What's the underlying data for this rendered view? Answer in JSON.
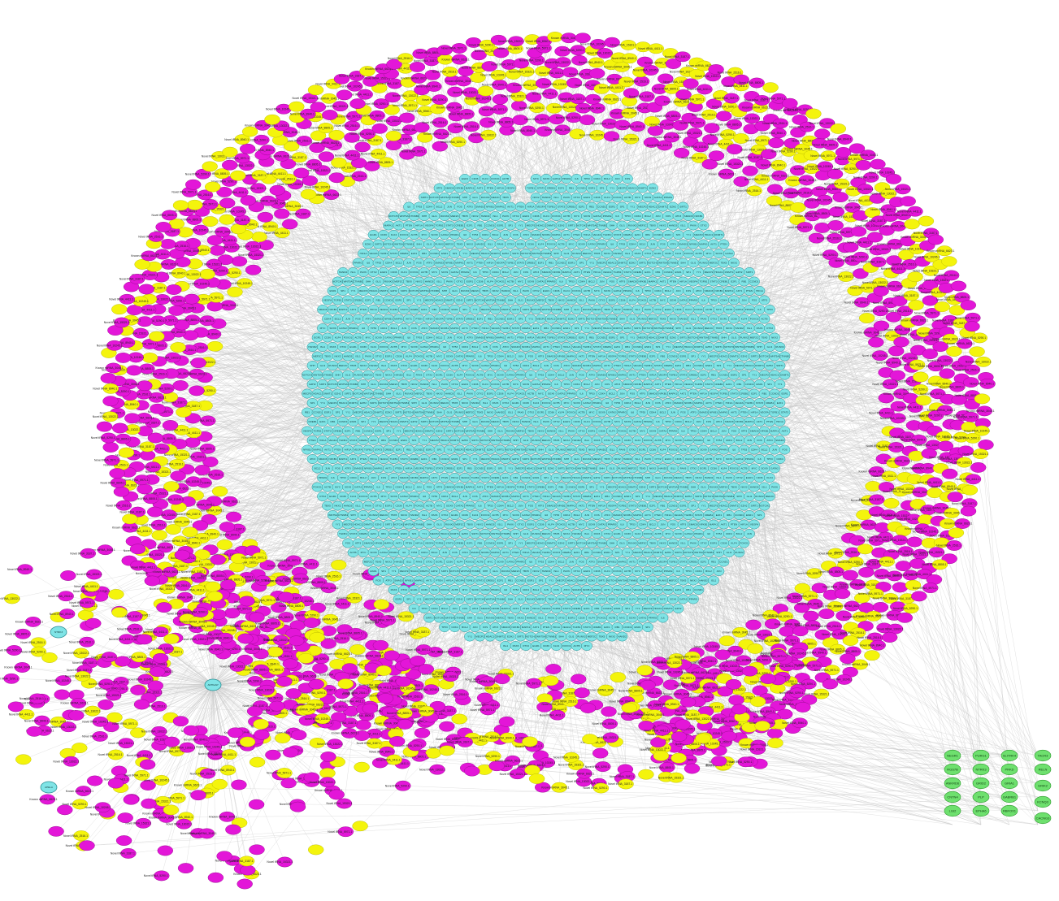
{
  "network": {
    "colors": {
      "mirna": "#e316d8",
      "lncrna": "#f4f40c",
      "mrna": "#7fe4e6",
      "module_gene": "#6ee06e",
      "edge": "#c8c8c8"
    },
    "small_rna_labels": [
      "Novel tRNA_5290.1",
      "Novel tRNA_20456.1",
      "Novel tRNA_13022.1",
      "Novel tRNA_6581.1",
      "Novel tRNA_8940.1",
      "Novel tRNA_17022.1",
      "Known miRNA_3045.1",
      "Novel tRNA_1193.1",
      "Novel tRNA_10245.1",
      "Novel tRNA_7720.1",
      "Novel tRNA_15321.1",
      "Known miRNA_9134.1",
      "Novel tRNA_4411.1",
      "Novel tRNA_22015.1",
      "Novel tRNA_3187.1",
      "Novel tRNA_11802.1",
      "Known miRNA_6623.1",
      "Novel tRNA_19944.1",
      "Novel tRNA_2516.1",
      "Novel tRNA_14470.1",
      "Novel tRNA_8805.1",
      "Known miRNA_12288.1",
      "Novel tRNA_5971.1",
      "Novel tRNA_16640.1"
    ],
    "mrna_labels": [
      "EGR1",
      "CD36",
      "KLF4",
      "FOXO1",
      "ACTB",
      "MYC",
      "SOX9",
      "GATA2",
      "PPARG",
      "IL6",
      "TP53",
      "CDK4",
      "BCL2",
      "JUN",
      "FOS",
      "ATF3",
      "SMAD3",
      "NFKB1",
      "MAPK1",
      "AKT1",
      "PTEN",
      "HIF1A",
      "VEGFA",
      "TGFB1",
      "STAT3",
      "CREB1",
      "E2F1",
      "RB1",
      "CCND1",
      "ESR1",
      "SP1",
      "YY1",
      "MECP2",
      "HDAC1",
      "DNMT1",
      "EZH2",
      "SIRT1",
      "NOTCH1",
      "WNT5A",
      "CTNNB1",
      "SHH",
      "GLI1",
      "RUNX2",
      "MEF2C",
      "TBX5",
      "NKX2",
      "HAND2",
      "ISL1",
      "PAX6",
      "OTX2"
    ],
    "hub_labels": [
      "ARHGAP",
      "APELA",
      "NTRK3"
    ],
    "module_labels": [
      "NEGR1",
      "PURG1",
      "SLITRK4",
      "TACR3",
      "RGS7B",
      "NTRK3",
      "PRKD",
      "RELN",
      "ANKRD6",
      "GRID2",
      "GRIA1",
      "GRIK2",
      "CNTN4",
      "PLP",
      "GABRB1",
      "KCNQ3",
      "LGI2",
      "EPHA6",
      "RBFOX1",
      "CACNG3",
      "LSAMP",
      "SLIT2",
      "OPCML",
      "NRXN3"
    ]
  }
}
